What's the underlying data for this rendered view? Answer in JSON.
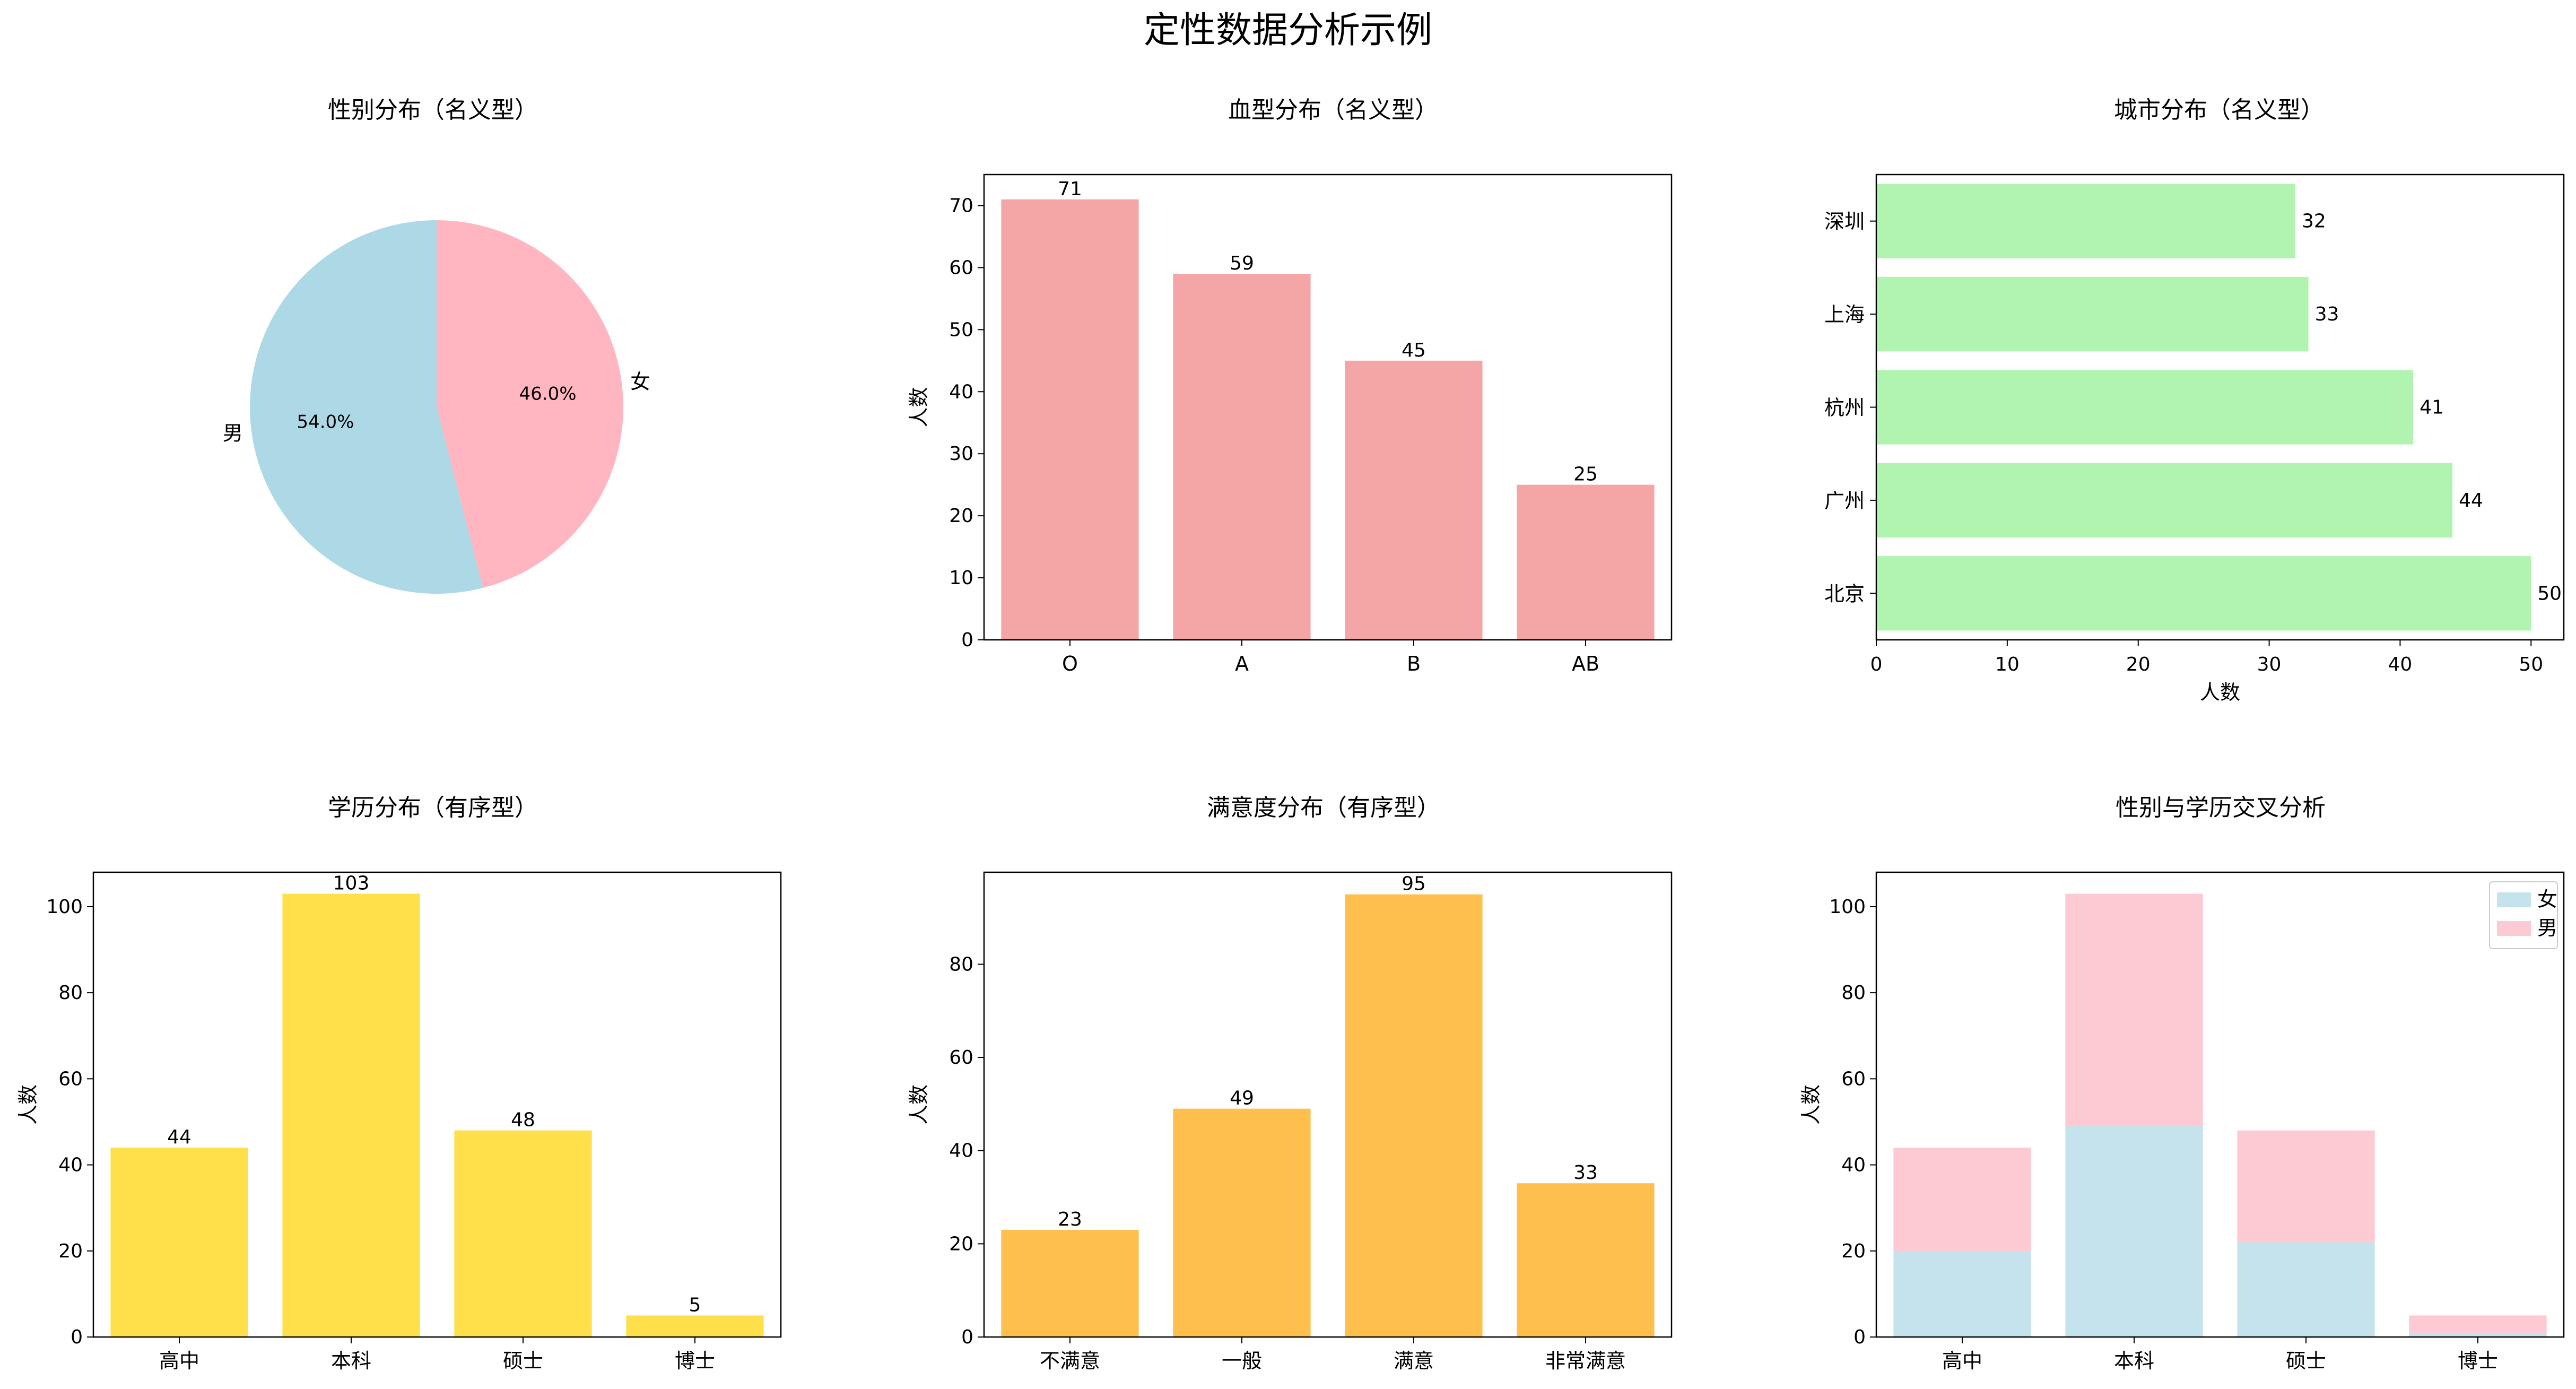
{
  "figure": {
    "suptitle": "定性数据分析示例"
  },
  "chart_data": [
    {
      "id": "gender",
      "type": "pie",
      "title": "性别分布（名义型）",
      "labels": [
        "男",
        "女"
      ],
      "values": [
        54.0,
        46.0
      ],
      "value_labels": [
        "54.0%",
        "46.0%"
      ],
      "colors": [
        "#add8e6",
        "#ffb6c1"
      ]
    },
    {
      "id": "blood",
      "type": "bar",
      "title": "血型分布（名义型）",
      "categories": [
        "O",
        "A",
        "B",
        "AB"
      ],
      "values": [
        71,
        59,
        45,
        25
      ],
      "xlabel": "",
      "ylabel": "人数",
      "ylim": [
        0,
        75
      ],
      "yticks": [
        0,
        10,
        20,
        30,
        40,
        50,
        60,
        70
      ],
      "color": "#f4a6a6",
      "grid": false
    },
    {
      "id": "city",
      "type": "barh",
      "title": "城市分布（名义型）",
      "categories": [
        "北京",
        "广州",
        "杭州",
        "上海",
        "深圳"
      ],
      "values": [
        50,
        44,
        41,
        33,
        32
      ],
      "xlabel": "人数",
      "ylabel": "",
      "xlim": [
        0,
        52.5
      ],
      "xticks": [
        0,
        10,
        20,
        30,
        40,
        50
      ],
      "color": "#b0f4b0",
      "grid": false
    },
    {
      "id": "education",
      "type": "bar",
      "title": "学历分布（有序型）",
      "categories": [
        "高中",
        "本科",
        "硕士",
        "博士"
      ],
      "values": [
        44,
        103,
        48,
        5
      ],
      "xlabel": "",
      "ylabel": "人数",
      "ylim": [
        0,
        108
      ],
      "yticks": [
        0,
        20,
        40,
        60,
        80,
        100
      ],
      "color": "#ffe04a",
      "grid": false
    },
    {
      "id": "satisfaction",
      "type": "bar",
      "title": "满意度分布（有序型）",
      "categories": [
        "不满意",
        "一般",
        "满意",
        "非常满意"
      ],
      "values": [
        23,
        49,
        95,
        33
      ],
      "xlabel": "",
      "ylabel": "人数",
      "ylim": [
        0,
        99.75
      ],
      "yticks": [
        0,
        20,
        40,
        60,
        80
      ],
      "color": "#ffbf4d",
      "grid": false
    },
    {
      "id": "cross",
      "type": "stacked_bar",
      "title": "性别与学历交叉分析",
      "categories": [
        "高中",
        "本科",
        "硕士",
        "博士"
      ],
      "series": [
        {
          "name": "女",
          "values": [
            20,
            49,
            22,
            1
          ],
          "color": "#c5e3ec"
        },
        {
          "name": "男",
          "values": [
            24,
            54,
            26,
            4
          ],
          "color": "#fdc9d2"
        }
      ],
      "xlabel": "",
      "ylabel": "人数",
      "ylim": [
        0,
        108
      ],
      "yticks": [
        0,
        20,
        40,
        60,
        80,
        100
      ],
      "legend": "top-right",
      "grid": false
    }
  ]
}
